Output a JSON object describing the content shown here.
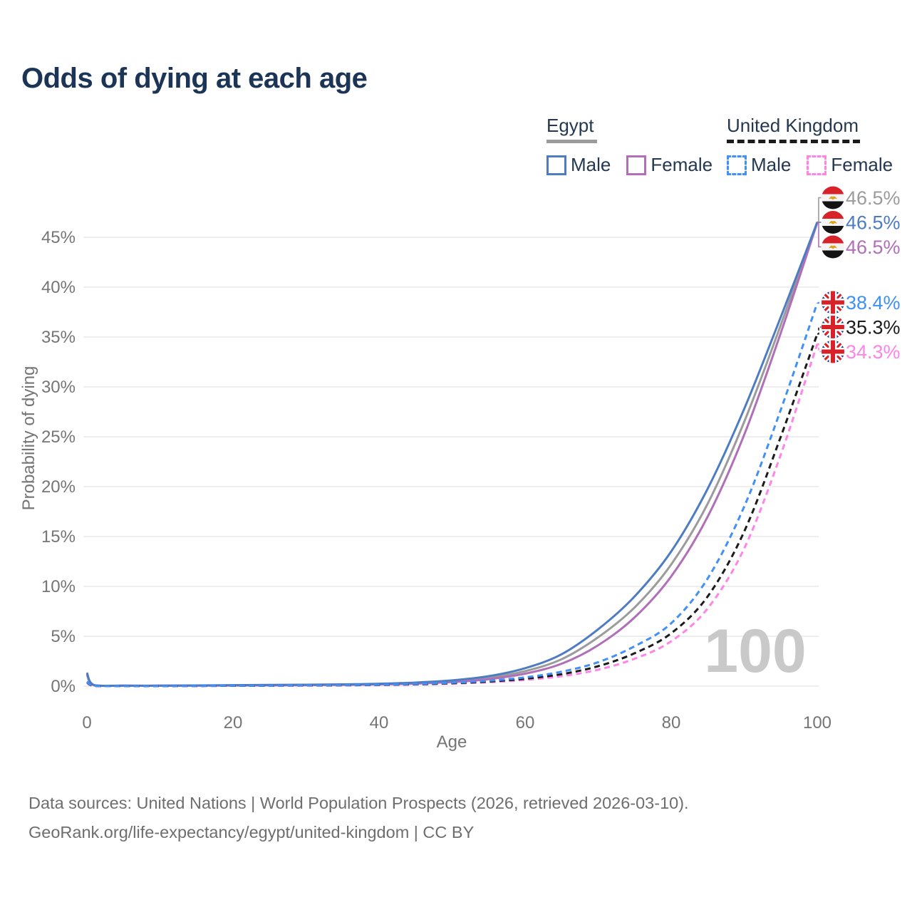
{
  "page": {
    "title": "Odds of dying at each age"
  },
  "legend": {
    "egypt": {
      "title": "Egypt",
      "male_label": "Male",
      "female_label": "Female"
    },
    "united_kingdom": {
      "title": "United Kingdom",
      "male_label": "Male",
      "female_label": "Female"
    }
  },
  "footer": {
    "line1": "Data sources: United Nations | World Population Prospects (2026, retrieved 2026-03-10).",
    "line2": "GeoRank.org/life-expectancy/egypt/united-kingdom | CC BY"
  },
  "colors": {
    "title_text": "#1c3557",
    "legend_text": "#243950",
    "axis_text": "#757575",
    "gridline": "#e9e9e9",
    "watermark": "#c9c9c9",
    "footer_text": "#6e6e6e",
    "egypt_male": "#4d7cc2",
    "egypt_female": "#b06fb7",
    "egypt_both": "#9b9b9b",
    "uk_male": "#4090f5",
    "uk_female": "#ff84e8",
    "uk_both": "#1b1b1b"
  },
  "chart_data": {
    "type": "line",
    "title": "Odds of dying at each age",
    "xlabel": "Age",
    "ylabel": "Probability of dying",
    "xlim": [
      0,
      100
    ],
    "ylim": [
      0,
      48.5
    ],
    "x_ticks": [
      0,
      20,
      40,
      60,
      80,
      100
    ],
    "y_ticks_percent": [
      0,
      5,
      10,
      15,
      20,
      25,
      30,
      35,
      40,
      45
    ],
    "grid": "horizontal",
    "legend_position": "top-right",
    "watermark": "100",
    "ages": [
      0,
      1,
      5,
      10,
      15,
      20,
      25,
      30,
      35,
      40,
      45,
      50,
      55,
      60,
      65,
      70,
      75,
      80,
      85,
      90,
      95,
      100
    ],
    "series": [
      {
        "id": "egypt-both",
        "name": "Egypt — Both sexes",
        "country": "egypt",
        "sex": "both",
        "line_style": "solid",
        "color": "#9b9b9b",
        "flag": "egypt",
        "end_label": "46.5%",
        "values": [
          1.25,
          0.09,
          0.04,
          0.04,
          0.06,
          0.08,
          0.1,
          0.12,
          0.15,
          0.2,
          0.3,
          0.49,
          0.84,
          1.5,
          2.7,
          4.9,
          7.9,
          12.2,
          18.3,
          26.5,
          36.2,
          46.54
        ]
      },
      {
        "id": "egypt-female",
        "name": "Egypt — Female",
        "country": "egypt",
        "sex": "female",
        "line_style": "solid",
        "color": "#b06fb7",
        "flag": "egypt",
        "end_label": "46.5%",
        "values": [
          1.15,
          0.08,
          0.04,
          0.04,
          0.05,
          0.06,
          0.08,
          0.1,
          0.13,
          0.17,
          0.25,
          0.41,
          0.7,
          1.25,
          2.25,
          4.1,
          6.9,
          11.0,
          17.0,
          25.2,
          35.4,
          46.46
        ]
      },
      {
        "id": "egypt-male",
        "name": "Egypt — Male",
        "country": "egypt",
        "sex": "male",
        "line_style": "solid",
        "color": "#4d7cc2",
        "flag": "egypt",
        "end_label": "46.5%",
        "values": [
          1.35,
          0.1,
          0.05,
          0.05,
          0.07,
          0.1,
          0.12,
          0.14,
          0.18,
          0.24,
          0.36,
          0.58,
          1.0,
          1.8,
          3.2,
          5.7,
          9.0,
          13.5,
          19.8,
          27.8,
          37.0,
          46.5
        ]
      },
      {
        "id": "uk-female",
        "name": "United Kingdom — Female",
        "country": "uk",
        "sex": "female",
        "line_style": "dashed",
        "color": "#ff84e8",
        "flag": "uk",
        "end_label": "34.3%",
        "values": [
          0.35,
          0.02,
          0.01,
          0.01,
          0.02,
          0.03,
          0.04,
          0.05,
          0.07,
          0.11,
          0.16,
          0.25,
          0.39,
          0.62,
          1.0,
          1.65,
          2.75,
          4.5,
          7.8,
          13.8,
          23.2,
          34.3
        ]
      },
      {
        "id": "uk-both",
        "name": "United Kingdom — Both sexes",
        "country": "uk",
        "sex": "both",
        "line_style": "dashed",
        "color": "#1b1b1b",
        "flag": "uk",
        "end_label": "35.3%",
        "values": [
          0.4,
          0.03,
          0.01,
          0.01,
          0.02,
          0.04,
          0.05,
          0.07,
          0.09,
          0.13,
          0.19,
          0.29,
          0.46,
          0.74,
          1.2,
          2.0,
          3.3,
          5.3,
          9.0,
          15.5,
          25.0,
          35.3
        ]
      },
      {
        "id": "uk-male",
        "name": "United Kingdom — Male",
        "country": "uk",
        "sex": "male",
        "line_style": "dashed",
        "color": "#4090f5",
        "flag": "uk",
        "end_label": "38.4%",
        "values": [
          0.45,
          0.03,
          0.01,
          0.01,
          0.03,
          0.05,
          0.06,
          0.08,
          0.11,
          0.15,
          0.22,
          0.34,
          0.54,
          0.88,
          1.45,
          2.4,
          4.0,
          6.3,
          10.8,
          18.0,
          27.7,
          38.4
        ]
      }
    ]
  }
}
